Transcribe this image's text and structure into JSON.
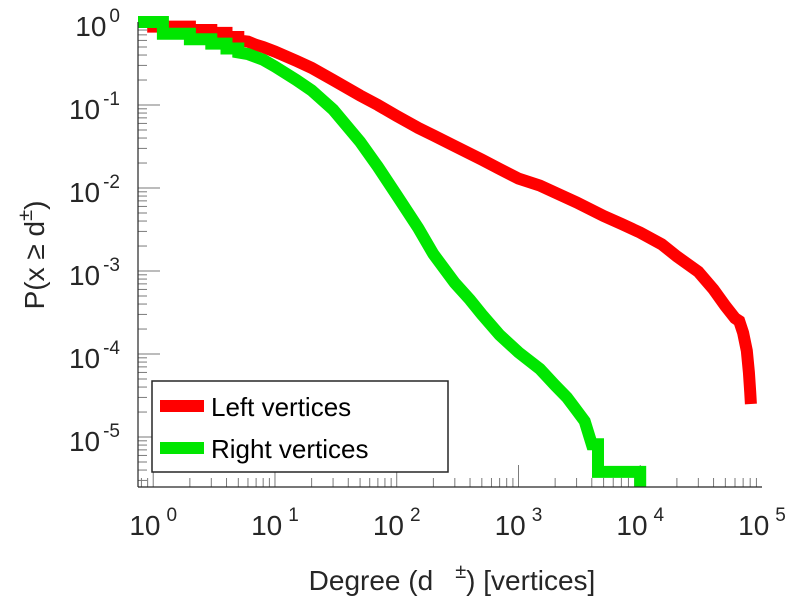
{
  "chart_data": {
    "type": "line",
    "scale": "log-log",
    "xlabel": {
      "prefix": "Degree (d",
      "superscript": "±",
      "suffix": ") [vertices]"
    },
    "ylabel": {
      "prefix": "P(x ≥ d",
      "superscript": "±",
      "suffix": ")"
    },
    "xlim": [
      0.75,
      100000
    ],
    "ylim": [
      2.5e-06,
      1
    ],
    "x_ticks": [
      {
        "value": 1,
        "base": "10",
        "exp": "0"
      },
      {
        "value": 10,
        "base": "10",
        "exp": "1"
      },
      {
        "value": 100,
        "base": "10",
        "exp": "2"
      },
      {
        "value": 1000,
        "base": "10",
        "exp": "3"
      },
      {
        "value": 10000,
        "base": "10",
        "exp": "4"
      },
      {
        "value": 100000,
        "base": "10",
        "exp": "5"
      }
    ],
    "y_ticks": [
      {
        "value": 1,
        "base": "10",
        "exp": "0"
      },
      {
        "value": 0.1,
        "base": "10",
        "exp": "-1"
      },
      {
        "value": 0.01,
        "base": "10",
        "exp": "-2"
      },
      {
        "value": 0.001,
        "base": "10",
        "exp": "-3"
      },
      {
        "value": 0.0001,
        "base": "10",
        "exp": "-4"
      },
      {
        "value": 1e-05,
        "base": "10",
        "exp": "-5"
      }
    ],
    "legend_position": "bottom-left",
    "series": [
      {
        "name": "Left vertices",
        "color": "#ff0000",
        "points": [
          [
            0.75,
            1
          ],
          [
            1,
            1
          ],
          [
            1,
            0.88
          ],
          [
            2,
            0.88
          ],
          [
            2,
            0.8
          ],
          [
            3,
            0.8
          ],
          [
            3,
            0.74
          ],
          [
            4,
            0.74
          ],
          [
            4,
            0.66
          ],
          [
            5,
            0.66
          ],
          [
            5,
            0.6
          ],
          [
            6,
            0.58
          ],
          [
            7,
            0.53
          ],
          [
            8,
            0.5
          ],
          [
            10,
            0.44
          ],
          [
            15,
            0.34
          ],
          [
            20,
            0.28
          ],
          [
            30,
            0.2
          ],
          [
            50,
            0.13
          ],
          [
            70,
            0.1
          ],
          [
            100,
            0.074
          ],
          [
            150,
            0.053
          ],
          [
            200,
            0.043
          ],
          [
            300,
            0.032
          ],
          [
            500,
            0.022
          ],
          [
            700,
            0.017
          ],
          [
            1000,
            0.013
          ],
          [
            1500,
            0.0107
          ],
          [
            2000,
            0.0088
          ],
          [
            3000,
            0.0067
          ],
          [
            5000,
            0.0046
          ],
          [
            7000,
            0.0037
          ],
          [
            10000,
            0.0029
          ],
          [
            15000,
            0.0021
          ],
          [
            20000,
            0.0015
          ],
          [
            30000,
            0.00098
          ],
          [
            40000,
            0.0006
          ],
          [
            50000,
            0.00038
          ],
          [
            60000,
            0.00027
          ],
          [
            65000,
            0.00025
          ],
          [
            70000,
            0.00018
          ],
          [
            75000,
            0.00011
          ],
          [
            78000,
            6e-05
          ],
          [
            80000,
            3.5e-05
          ],
          [
            81000,
            2.5e-05
          ]
        ]
      },
      {
        "name": "Right vertices",
        "color": "#00e600",
        "points": [
          [
            0.75,
            1
          ],
          [
            1.2,
            1
          ],
          [
            1.2,
            0.72
          ],
          [
            2,
            0.72
          ],
          [
            2,
            0.62
          ],
          [
            3,
            0.62
          ],
          [
            3,
            0.55
          ],
          [
            4,
            0.55
          ],
          [
            4,
            0.48
          ],
          [
            5,
            0.48
          ],
          [
            5,
            0.43
          ],
          [
            6,
            0.41
          ],
          [
            8,
            0.35
          ],
          [
            10,
            0.29
          ],
          [
            15,
            0.2
          ],
          [
            20,
            0.15
          ],
          [
            30,
            0.088
          ],
          [
            50,
            0.036
          ],
          [
            70,
            0.018
          ],
          [
            100,
            0.0082
          ],
          [
            150,
            0.0033
          ],
          [
            200,
            0.0016
          ],
          [
            300,
            0.00072
          ],
          [
            400,
            0.00045
          ],
          [
            500,
            0.0003
          ],
          [
            700,
            0.00017
          ],
          [
            1000,
            0.000105
          ],
          [
            1500,
            6.6e-05
          ],
          [
            2000,
            4.2e-05
          ],
          [
            2500,
            3e-05
          ],
          [
            3000,
            2.1e-05
          ],
          [
            3500,
            1.55e-05
          ],
          [
            4000,
            8.2e-06
          ],
          [
            4500,
            8.2e-06
          ],
          [
            4500,
            3.8e-06
          ],
          [
            10000,
            3.8e-06
          ],
          [
            10000,
            2.5e-06
          ]
        ]
      }
    ]
  }
}
